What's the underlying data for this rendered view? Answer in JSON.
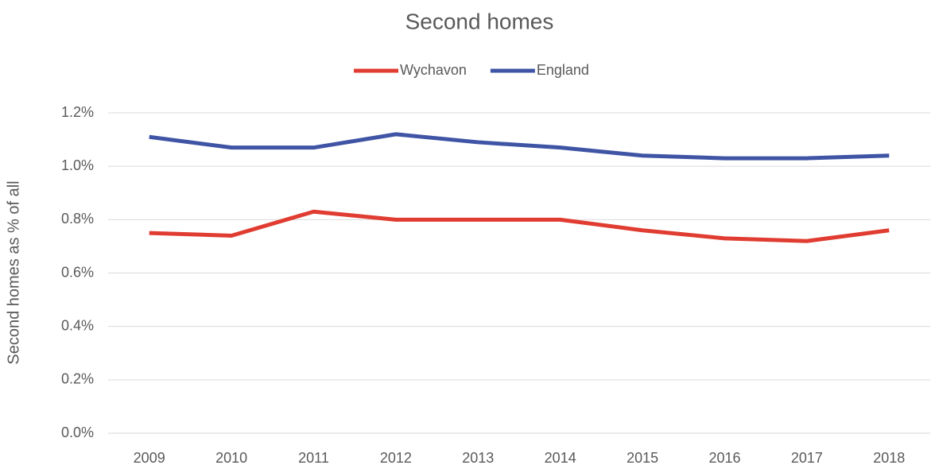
{
  "chart_data": {
    "type": "line",
    "title": "Second homes",
    "y_label": "Second homes as % of all",
    "categories": [
      "2009",
      "2010",
      "2011",
      "2012",
      "2013",
      "2014",
      "2015",
      "2016",
      "2017",
      "2018"
    ],
    "series": [
      {
        "name": "Wychavon",
        "color": "#e03c31",
        "values": [
          0.75,
          0.74,
          0.83,
          0.8,
          0.8,
          0.8,
          0.76,
          0.73,
          0.72,
          0.76
        ]
      },
      {
        "name": "England",
        "color": "#3f54a5",
        "values": [
          1.11,
          1.07,
          1.07,
          1.12,
          1.09,
          1.07,
          1.04,
          1.03,
          1.03,
          1.04
        ]
      }
    ],
    "ylim": [
      0,
      1.2
    ],
    "yticks": [
      {
        "value": 0,
        "label": "0.0%"
      },
      {
        "value": 0.2,
        "label": "0.2%"
      },
      {
        "value": 0.4,
        "label": "0.4%"
      },
      {
        "value": 0.6,
        "label": "0.6%"
      },
      {
        "value": 0.8,
        "label": "0.8%"
      },
      {
        "value": 1.0,
        "label": "1.0%"
      },
      {
        "value": 1.2,
        "label": "1.2%"
      }
    ],
    "grid": true,
    "legend": "top"
  }
}
